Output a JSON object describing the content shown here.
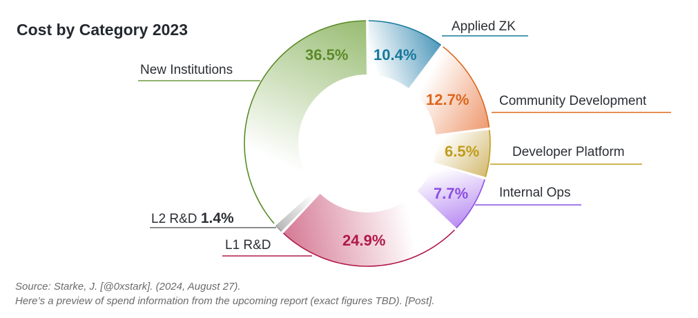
{
  "chart_data": {
    "type": "pie",
    "variant": "donut",
    "title": "Cost by Category 2023",
    "unit": "%",
    "legend": "none (leader-line labels)",
    "slices": [
      {
        "label": "Applied ZK",
        "value": 10.4,
        "value_label": "10.4%",
        "color": "#4f98bb",
        "text_color": "#17789c"
      },
      {
        "label": "Community Development",
        "value": 12.7,
        "value_label": "12.7%",
        "color": "#ee9a70",
        "text_color": "#dd661c"
      },
      {
        "label": "Developer Platform",
        "value": 6.5,
        "value_label": "6.5%",
        "color": "#d4bb72",
        "text_color": "#bf9c1c"
      },
      {
        "label": "Internal Ops",
        "value": 7.7,
        "value_label": "7.7%",
        "color": "#b88cf2",
        "text_color": "#8a4de0"
      },
      {
        "label": "L1 R&D",
        "value": 24.9,
        "value_label": "24.9%",
        "color": "#d57994",
        "text_color": "#b01848"
      },
      {
        "label": "L2 R&D",
        "value": 1.4,
        "value_label": "1.4%",
        "color": "#b8b8b8",
        "text_color": "#2a2e33"
      },
      {
        "label": "New Institutions",
        "value": 36.5,
        "value_label": "36.5%",
        "color": "#98bc72",
        "text_color": "#5b8a28"
      }
    ]
  },
  "source": {
    "line1": "Source: Starke, J. [@0xstark]. (2024, August 27).",
    "line2": "Here’s a preview of spend information from the upcoming report (exact figures TBD). [Post]."
  }
}
